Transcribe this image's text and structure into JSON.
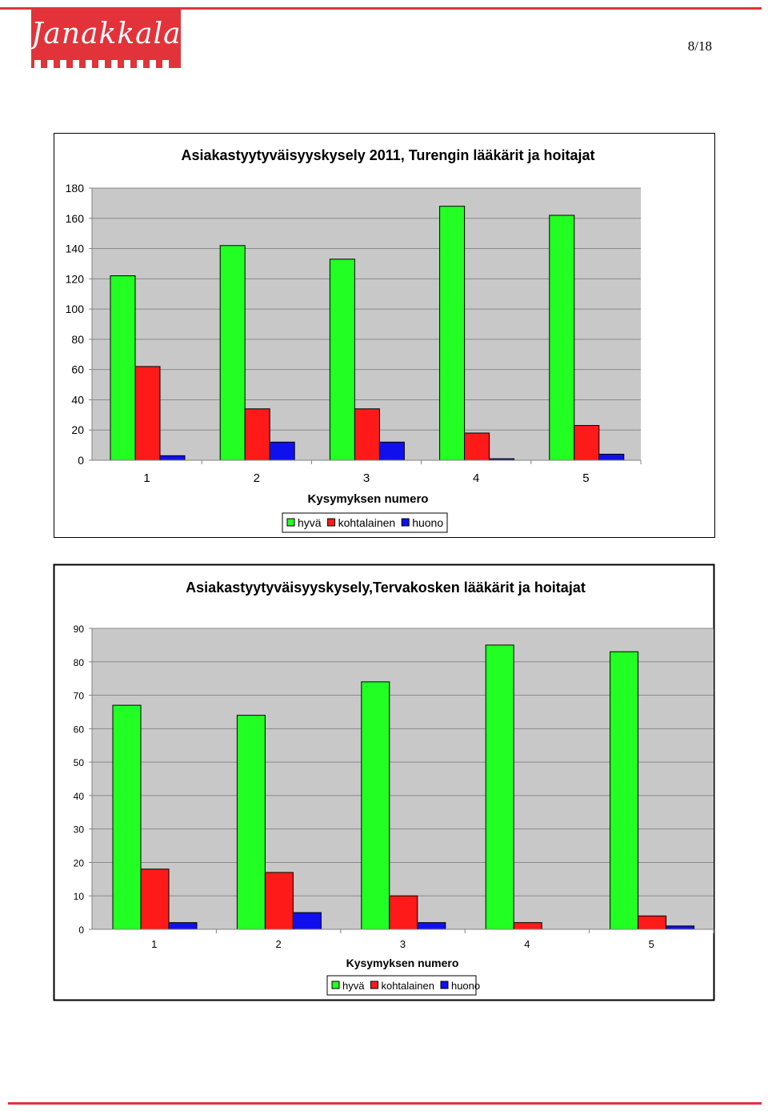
{
  "header": {
    "logo_text": "Janakkala",
    "page_number": "8/18",
    "brand_color": "#e2333b"
  },
  "chart_data": [
    {
      "type": "bar",
      "title": "Asiakastyytyväisyyskysely 2011, Turengin lääkärit ja hoitajat",
      "xlabel": "Kysymyksen numero",
      "ylabel": "",
      "categories": [
        "1",
        "2",
        "3",
        "4",
        "5"
      ],
      "series": [
        {
          "name": "hyvä",
          "color": "#22ff22",
          "values": [
            122,
            142,
            133,
            168,
            162
          ]
        },
        {
          "name": "kohtalainen",
          "color": "#ff1a1a",
          "values": [
            62,
            34,
            34,
            18,
            23
          ]
        },
        {
          "name": "huono",
          "color": "#1010ee",
          "values": [
            3,
            12,
            12,
            1,
            4
          ]
        }
      ],
      "ylim": [
        0,
        180
      ],
      "yticks": [
        0,
        20,
        40,
        60,
        80,
        100,
        120,
        140,
        160,
        180
      ],
      "grid": true,
      "legend": "bottom"
    },
    {
      "type": "bar",
      "title": "Asiakastyytyväisyyskysely,Tervakosken lääkärit ja hoitajat",
      "xlabel": "Kysymyksen numero",
      "ylabel": "",
      "categories": [
        "1",
        "2",
        "3",
        "4",
        "5"
      ],
      "series": [
        {
          "name": "hyvä",
          "color": "#22ff22",
          "values": [
            67,
            64,
            74,
            85,
            83
          ]
        },
        {
          "name": "kohtalainen",
          "color": "#ff1a1a",
          "values": [
            18,
            17,
            10,
            2,
            4
          ]
        },
        {
          "name": "huono",
          "color": "#1010ee",
          "values": [
            2,
            5,
            2,
            0,
            1
          ]
        }
      ],
      "ylim": [
        0,
        90
      ],
      "yticks": [
        0,
        10,
        20,
        30,
        40,
        50,
        60,
        70,
        80,
        90
      ],
      "grid": true,
      "legend": "bottom"
    }
  ]
}
